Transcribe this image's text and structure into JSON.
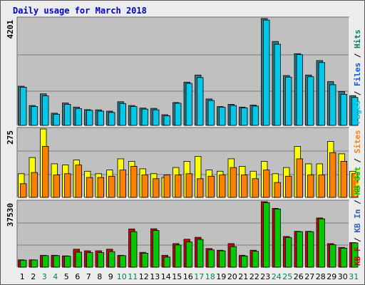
{
  "chart_data": {
    "type": "bar",
    "title": "Daily usage for March 2018",
    "categories": [
      "1",
      "2",
      "3",
      "4",
      "5",
      "6",
      "7",
      "8",
      "9",
      "10",
      "11",
      "12",
      "13",
      "14",
      "15",
      "16",
      "17",
      "18",
      "19",
      "20",
      "21",
      "22",
      "23",
      "24",
      "25",
      "26",
      "27",
      "28",
      "29",
      "30",
      "31"
    ],
    "weekend_days": [
      "3",
      "4",
      "10",
      "11",
      "17",
      "18",
      "24",
      "25",
      "31"
    ],
    "colors": {
      "pages": "#00c8e8",
      "files": "#0050ff",
      "hits": "#008060",
      "visits": "#ffff00",
      "sites": "#ff8000",
      "kb_in": "#3060c0",
      "kb_out": "#00c800",
      "kb_f": "#d00000",
      "title": "#0000c8",
      "weekend_label": "#008060",
      "panel_bg": "#c0c0c0",
      "frame_bg": "#ececec"
    },
    "panels": [
      {
        "id": "hits",
        "max_label": "4201",
        "ylim": [
          0,
          4201
        ],
        "legend": [
          {
            "text": "Pages",
            "color": "#00c8e8"
          },
          {
            "text": "Files",
            "color": "#0050ff"
          },
          {
            "text": "Hits",
            "color": "#008060"
          }
        ],
        "series": [
          {
            "name": "Files",
            "color": "#2b7a8a",
            "values": [
              1540,
              780,
              1240,
              480,
              880,
              720,
              620,
              610,
              560,
              930,
              780,
              680,
              670,
              420,
              900,
              1700,
              1980,
              1040,
              740,
              830,
              720,
              800,
              4201,
              3300,
              1960,
              2820,
              1980,
              2550,
              1720,
              1330,
              1170
            ]
          },
          {
            "name": "Pages",
            "color": "#00c8e8",
            "values": [
              1500,
              740,
              1160,
              440,
              830,
              660,
              590,
              560,
              510,
              860,
              740,
              640,
              610,
              380,
              870,
              1650,
              1880,
              980,
              710,
              780,
              690,
              760,
              4140,
              3190,
              1900,
              2780,
              1910,
              2470,
              1600,
              1220,
              1100
            ]
          }
        ]
      },
      {
        "id": "visits",
        "max_label": "275",
        "ylim": [
          0,
          275
        ],
        "legend": [
          {
            "text": "Visits",
            "color": "#ffff00"
          },
          {
            "text": "Sites",
            "color": "#ff8000"
          }
        ],
        "series": [
          {
            "name": "Visits",
            "color": "#ffff00",
            "values": [
              95,
              160,
              275,
              135,
              130,
              150,
              105,
              95,
              110,
              155,
              145,
              115,
              95,
              80,
              120,
              145,
              165,
              110,
              105,
              155,
              125,
              105,
              145,
              95,
              120,
              205,
              135,
              135,
              225,
              175,
              105
            ]
          },
          {
            "name": "Sites",
            "color": "#ff8000",
            "values": [
              55,
              100,
              205,
              90,
              95,
              130,
              80,
              80,
              85,
              110,
              125,
              90,
              75,
              90,
              90,
              95,
              75,
              85,
              90,
              120,
              90,
              75,
              110,
              60,
              85,
              155,
              90,
              90,
              180,
              145,
              95
            ]
          }
        ]
      },
      {
        "id": "kbytes",
        "max_label": "37530",
        "ylim": [
          0,
          37530
        ],
        "legend": [
          {
            "text": "KB F",
            "color": "#d00000"
          },
          {
            "text": "KB In",
            "color": "#3060c0"
          },
          {
            "text": "KB Out",
            "color": "#00c800"
          }
        ],
        "series": [
          {
            "name": "KB F",
            "color": "#d00000",
            "values": [
              4200,
              4200,
              6800,
              6800,
              6500,
              10300,
              9400,
              9400,
              10300,
              6800,
              21900,
              8500,
              22000,
              6800,
              13500,
              16000,
              17100,
              10700,
              9700,
              13500,
              6800,
              9700,
              37500,
              33700,
              17600,
              20500,
              20500,
              28200,
              13500,
              11300,
              14100
            ]
          },
          {
            "name": "KB Out",
            "color": "#00c800",
            "values": [
              4000,
              4100,
              6600,
              6600,
              6300,
              8600,
              8400,
              8400,
              8900,
              6600,
              20300,
              8000,
              21000,
              5800,
              12700,
              14400,
              15900,
              9900,
              9400,
              11800,
              6400,
              9100,
              36900,
              33300,
              17000,
              20300,
              20300,
              27700,
              12900,
              10900,
              13900
            ]
          }
        ]
      }
    ]
  }
}
